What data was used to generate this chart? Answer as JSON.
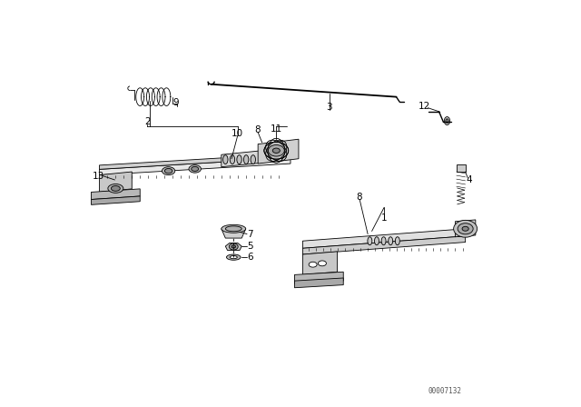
{
  "bg_color": "#ffffff",
  "line_color": "#000000",
  "fig_width": 6.4,
  "fig_height": 4.48,
  "dpi": 100,
  "part_number": "00007132"
}
